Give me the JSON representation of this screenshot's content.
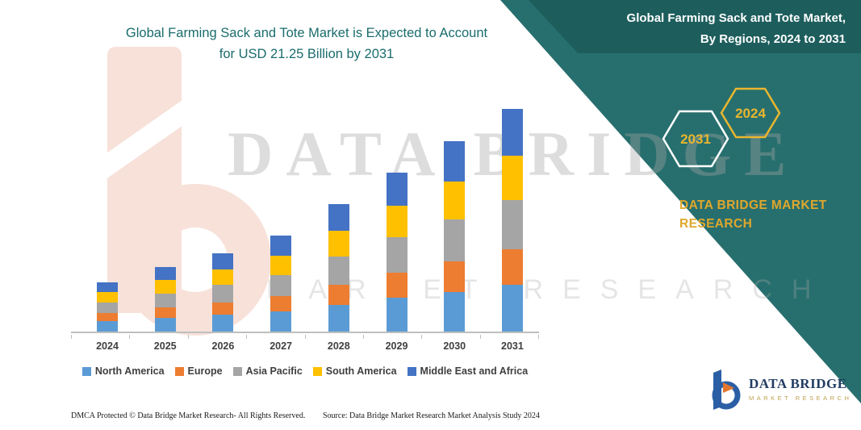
{
  "title": {
    "line1": "Global Farming Sack and Tote Market is Expected to Account",
    "line2": "for USD 21.25 Billion by 2031"
  },
  "side_panel": {
    "banner_line1": "Global Farming Sack and Tote Market,",
    "banner_line2": "By Regions, 2024 to 2031",
    "hexagon_left": "2031",
    "hexagon_right": "2024",
    "brand_line1": "DATA BRIDGE MARKET",
    "brand_line2": "RESEARCH",
    "teal_color": "#276f6e",
    "banner_color": "#1d5e5d",
    "gold_color": "#e9b62e"
  },
  "watermark": {
    "big_text": "DATA BRIDGE",
    "sub_text": "MARKET RESEARCH"
  },
  "chart_data": {
    "type": "bar",
    "stacked": true,
    "title": "Global Farming Sack and Tote Market is Expected to Account for USD 21.25 Billion by 2031",
    "unit": "USD Billion",
    "total_2031": 21.25,
    "categories": [
      "2024",
      "2025",
      "2026",
      "2027",
      "2028",
      "2029",
      "2030",
      "2031"
    ],
    "totals_estimated": [
      4.7,
      6.2,
      7.5,
      9.2,
      12.2,
      15.2,
      18.2,
      21.25
    ],
    "series": [
      {
        "name": "North America",
        "color": "#5B9BD5",
        "values": [
          1.0,
          1.3,
          1.6,
          1.95,
          2.55,
          3.2,
          3.8,
          4.45
        ]
      },
      {
        "name": "Europe",
        "color": "#ED7D31",
        "values": [
          0.75,
          1.0,
          1.2,
          1.45,
          1.95,
          2.45,
          2.9,
          3.4
        ]
      },
      {
        "name": "Asia Pacific",
        "color": "#A5A5A5",
        "values": [
          1.05,
          1.35,
          1.65,
          2.0,
          2.7,
          3.35,
          4.0,
          4.7
        ]
      },
      {
        "name": "South America",
        "color": "#FFC000",
        "values": [
          0.95,
          1.25,
          1.5,
          1.85,
          2.45,
          3.05,
          3.65,
          4.25
        ]
      },
      {
        "name": "Middle East and Africa",
        "color": "#4472C4",
        "values": [
          0.95,
          1.3,
          1.55,
          1.95,
          2.55,
          3.15,
          3.85,
          4.45
        ]
      }
    ],
    "xlabel": "",
    "ylabel": "",
    "ylim": [
      0,
      22
    ],
    "y_axis_visible": false,
    "grid": false,
    "legend_position": "bottom"
  },
  "footer": {
    "dmca": "DMCA Protected © Data Bridge Market Research-  All Rights Reserved.",
    "source": "Source: Data Bridge Market Research  Market Analysis Study 2024"
  },
  "logo": {
    "name": "DATA BRIDGE",
    "tagline": "MARKET RESEARCH"
  }
}
